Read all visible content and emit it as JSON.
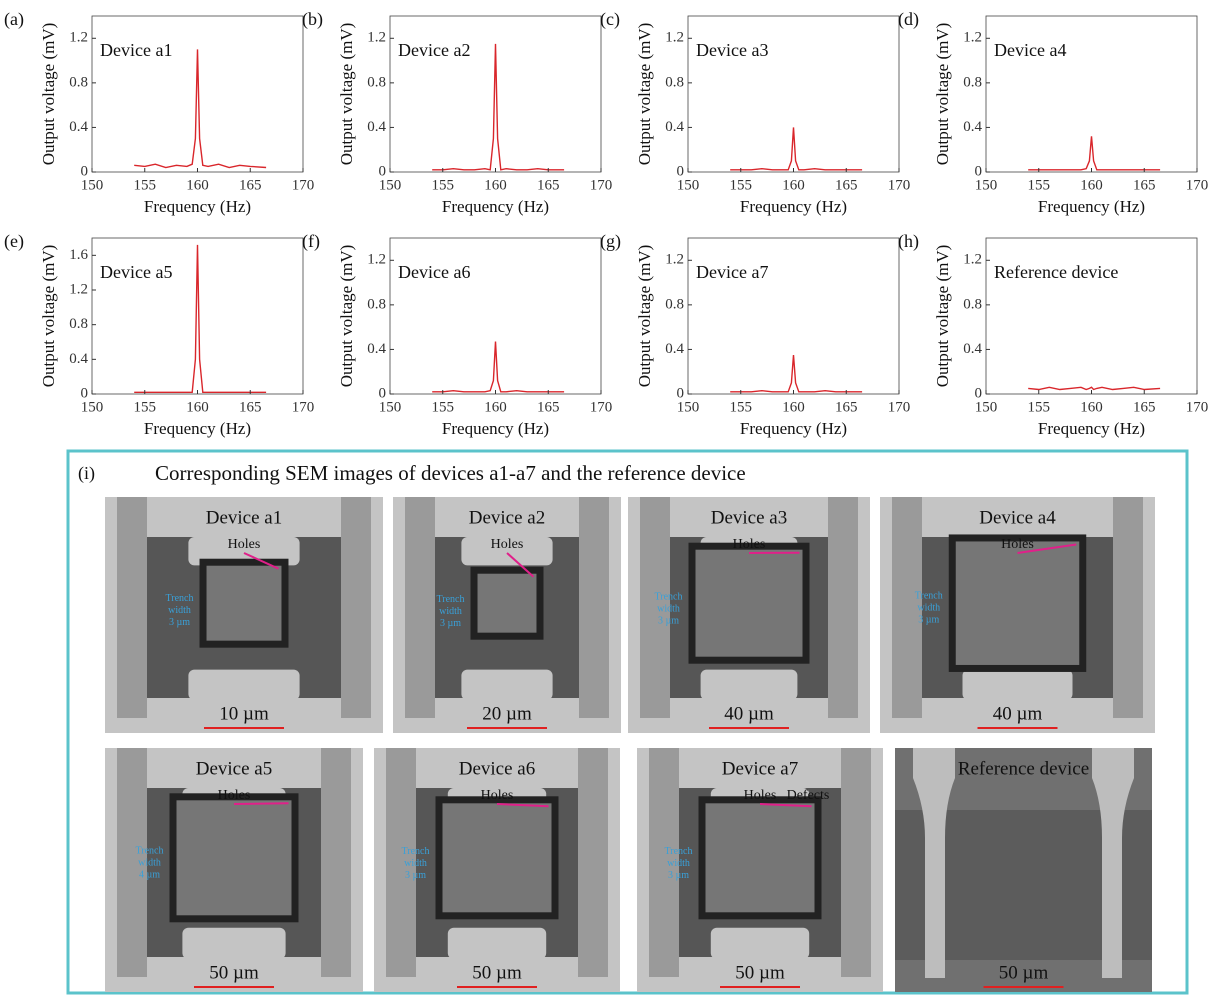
{
  "chart_data": [
    {
      "type": "line",
      "panel": "(a)",
      "title": "Device a1",
      "x_label": "Frequency (Hz)",
      "y_label": "Output voltage (mV)",
      "color": "#d9262b",
      "x": [
        154,
        155,
        156,
        157,
        158,
        159,
        159.5,
        159.8,
        160,
        160.2,
        160.5,
        161,
        162,
        163,
        164,
        165,
        166.5
      ],
      "values": [
        0.06,
        0.05,
        0.07,
        0.04,
        0.06,
        0.05,
        0.07,
        0.3,
        1.1,
        0.3,
        0.06,
        0.05,
        0.07,
        0.04,
        0.06,
        0.05,
        0.04
      ],
      "xlim": [
        150,
        170
      ],
      "xticks": [
        150,
        155,
        160,
        165,
        170
      ],
      "ylim": [
        0,
        1.4
      ],
      "yticks": [
        0,
        0.4,
        0.8,
        1.2
      ]
    },
    {
      "type": "line",
      "panel": "(b)",
      "title": "Device a2",
      "x_label": "Frequency (Hz)",
      "y_label": "Output voltage (mV)",
      "color": "#d9262b",
      "x": [
        154,
        155,
        156,
        157,
        158,
        159,
        159.5,
        159.8,
        160,
        160.2,
        160.5,
        161,
        162,
        163,
        164,
        165,
        166.5
      ],
      "values": [
        0.02,
        0.02,
        0.03,
        0.02,
        0.02,
        0.03,
        0.02,
        0.3,
        1.15,
        0.3,
        0.02,
        0.03,
        0.02,
        0.02,
        0.03,
        0.02,
        0.02
      ],
      "xlim": [
        150,
        170
      ],
      "xticks": [
        150,
        155,
        160,
        165,
        170
      ],
      "ylim": [
        0,
        1.4
      ],
      "yticks": [
        0,
        0.4,
        0.8,
        1.2
      ]
    },
    {
      "type": "line",
      "panel": "(c)",
      "title": "Device a3",
      "x_label": "Frequency (Hz)",
      "y_label": "Output voltage (mV)",
      "color": "#d9262b",
      "x": [
        154,
        155,
        156,
        157,
        158,
        159,
        159.5,
        159.8,
        160,
        160.2,
        160.5,
        161,
        162,
        163,
        164,
        165,
        166.5
      ],
      "values": [
        0.02,
        0.02,
        0.02,
        0.03,
        0.02,
        0.02,
        0.02,
        0.1,
        0.4,
        0.1,
        0.02,
        0.02,
        0.03,
        0.02,
        0.02,
        0.02,
        0.02
      ],
      "xlim": [
        150,
        170
      ],
      "xticks": [
        150,
        155,
        160,
        165,
        170
      ],
      "ylim": [
        0,
        1.4
      ],
      "yticks": [
        0,
        0.4,
        0.8,
        1.2
      ]
    },
    {
      "type": "line",
      "panel": "(d)",
      "title": "Device a4",
      "x_label": "Frequency (Hz)",
      "y_label": "Output voltage (mV)",
      "color": "#d9262b",
      "x": [
        154,
        155,
        156,
        157,
        158,
        159,
        159.5,
        159.8,
        160,
        160.2,
        160.5,
        161,
        162,
        163,
        164,
        165,
        166.5
      ],
      "values": [
        0.02,
        0.02,
        0.02,
        0.02,
        0.02,
        0.02,
        0.03,
        0.1,
        0.32,
        0.1,
        0.02,
        0.02,
        0.02,
        0.02,
        0.02,
        0.02,
        0.02
      ],
      "xlim": [
        150,
        170
      ],
      "xticks": [
        150,
        155,
        160,
        165,
        170
      ],
      "ylim": [
        0,
        1.4
      ],
      "yticks": [
        0,
        0.4,
        0.8,
        1.2
      ]
    },
    {
      "type": "line",
      "panel": "(e)",
      "title": "Device a5",
      "x_label": "Frequency (Hz)",
      "y_label": "Output voltage (mV)",
      "color": "#d9262b",
      "x": [
        154,
        155,
        156,
        157,
        158,
        159,
        159.5,
        159.8,
        160,
        160.2,
        160.5,
        161,
        162,
        163,
        164,
        165,
        166.5
      ],
      "values": [
        0.02,
        0.02,
        0.02,
        0.02,
        0.02,
        0.02,
        0.02,
        0.4,
        1.72,
        0.4,
        0.02,
        0.02,
        0.02,
        0.02,
        0.02,
        0.02,
        0.02
      ],
      "xlim": [
        150,
        170
      ],
      "xticks": [
        150,
        155,
        160,
        165,
        170
      ],
      "ylim": [
        0,
        1.8
      ],
      "yticks": [
        0,
        0.4,
        0.8,
        1.2,
        1.6
      ]
    },
    {
      "type": "line",
      "panel": "(f)",
      "title": "Device a6",
      "x_label": "Frequency (Hz)",
      "y_label": "Output voltage (mV)",
      "color": "#d9262b",
      "x": [
        154,
        155,
        156,
        157,
        158,
        159,
        159.5,
        159.8,
        160,
        160.2,
        160.5,
        161,
        162,
        163,
        164,
        165,
        166.5
      ],
      "values": [
        0.02,
        0.02,
        0.03,
        0.02,
        0.02,
        0.02,
        0.03,
        0.12,
        0.47,
        0.12,
        0.02,
        0.02,
        0.03,
        0.02,
        0.02,
        0.02,
        0.02
      ],
      "xlim": [
        150,
        170
      ],
      "xticks": [
        150,
        155,
        160,
        165,
        170
      ],
      "ylim": [
        0,
        1.4
      ],
      "yticks": [
        0,
        0.4,
        0.8,
        1.2
      ]
    },
    {
      "type": "line",
      "panel": "(g)",
      "title": "Device a7",
      "x_label": "Frequency (Hz)",
      "y_label": "Output voltage (mV)",
      "color": "#d9262b",
      "x": [
        154,
        155,
        156,
        157,
        158,
        159,
        159.5,
        159.8,
        160,
        160.2,
        160.5,
        161,
        162,
        163,
        164,
        165,
        166.5
      ],
      "values": [
        0.02,
        0.02,
        0.02,
        0.03,
        0.02,
        0.02,
        0.02,
        0.1,
        0.35,
        0.1,
        0.02,
        0.02,
        0.02,
        0.03,
        0.02,
        0.02,
        0.02
      ],
      "xlim": [
        150,
        170
      ],
      "xticks": [
        150,
        155,
        160,
        165,
        170
      ],
      "ylim": [
        0,
        1.4
      ],
      "yticks": [
        0,
        0.4,
        0.8,
        1.2
      ]
    },
    {
      "type": "line",
      "panel": "(h)",
      "title": "Reference device",
      "x_label": "Frequency (Hz)",
      "y_label": "Output voltage (mV)",
      "color": "#d9262b",
      "x": [
        154,
        155,
        156,
        157,
        158,
        159,
        159.5,
        159.8,
        160,
        160.2,
        160.5,
        161,
        162,
        163,
        164,
        165,
        166.5
      ],
      "values": [
        0.05,
        0.04,
        0.06,
        0.04,
        0.05,
        0.06,
        0.04,
        0.05,
        0.06,
        0.04,
        0.05,
        0.06,
        0.04,
        0.05,
        0.06,
        0.04,
        0.05
      ],
      "xlim": [
        150,
        170
      ],
      "xticks": [
        150,
        155,
        160,
        165,
        170
      ],
      "ylim": [
        0,
        1.4
      ],
      "yticks": [
        0,
        0.4,
        0.8,
        1.2
      ]
    }
  ],
  "sem_panel": {
    "label": "(i)",
    "title": "Corresponding SEM images of devices a1-a7 and the reference device",
    "images": [
      {
        "title": "Device a1",
        "holes": "Holes",
        "trench": [
          "Trench",
          "width",
          "3 µm"
        ],
        "scale": "10 µm"
      },
      {
        "title": "Device a2",
        "holes": "Holes",
        "trench": [
          "Trench",
          "width",
          "3 µm"
        ],
        "scale": "20 µm"
      },
      {
        "title": "Device a3",
        "holes": "Holes",
        "trench": [
          "Trench",
          "width",
          "3 µm"
        ],
        "scale": "40 µm"
      },
      {
        "title": "Device a4",
        "holes": "Holes",
        "trench": [
          "Trench",
          "width",
          "3 µm"
        ],
        "scale": "40 µm"
      },
      {
        "title": "Device a5",
        "holes": "Holes",
        "trench": [
          "Trench",
          "width",
          "4 µm"
        ],
        "scale": "50 µm"
      },
      {
        "title": "Device a6",
        "holes": "Holes",
        "trench": [
          "Trench",
          "width",
          "3 µm"
        ],
        "scale": "50 µm"
      },
      {
        "title": "Device a7",
        "holes": "Holes",
        "defects": "Defects",
        "trench": [
          "Trench",
          "width",
          "3 µm"
        ],
        "scale": "50 µm"
      },
      {
        "title": "Reference device",
        "scale": "50 µm"
      }
    ]
  }
}
